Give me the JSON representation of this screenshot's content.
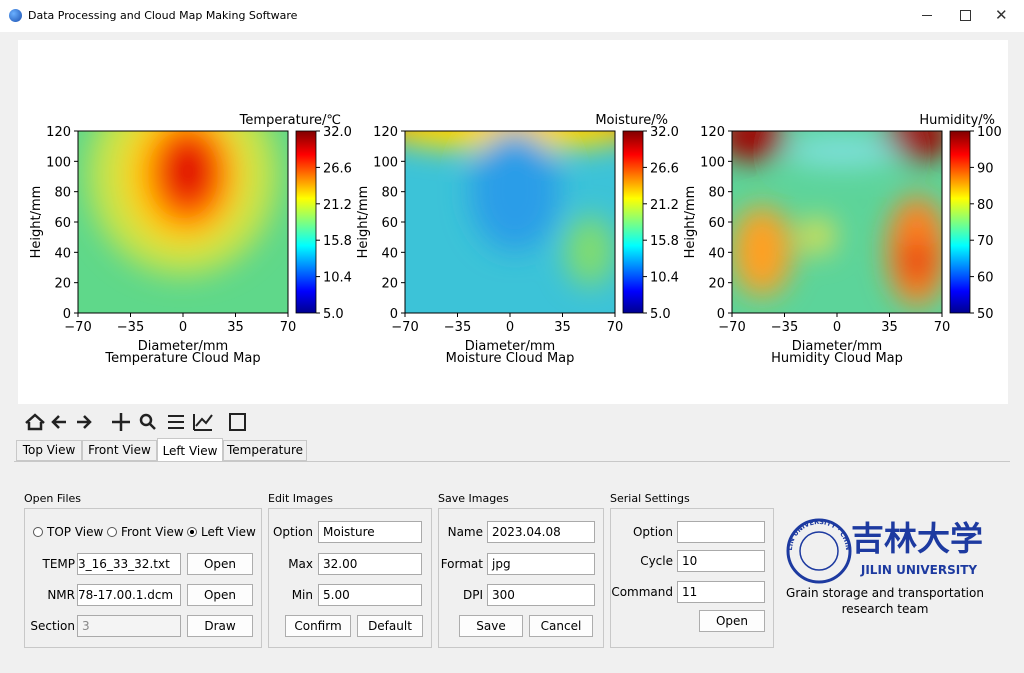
{
  "window": {
    "title": "Data Processing and Cloud Map Making Software"
  },
  "plots": [
    {
      "title": "Temperature Cloud Map",
      "colorbar_label": "Temperature/℃",
      "xlabel": "Diameter/mm",
      "ylabel": "Height/mm",
      "xlim": [
        -70,
        70
      ],
      "xticks": [
        {
          "value": -70,
          "label": "−70"
        },
        {
          "value": -35,
          "label": "−35"
        },
        0,
        35,
        70
      ],
      "ylim": [
        0,
        120
      ],
      "yticks": [
        0,
        20,
        40,
        60,
        80,
        100,
        120
      ],
      "clim": [
        5,
        32
      ],
      "cticks": [
        {
          "value": 5,
          "label": "5.0"
        },
        10.4,
        15.8,
        21.2,
        26.6,
        {
          "value": 32,
          "label": "32.0"
        }
      ]
    },
    {
      "title": "Moisture Cloud Map",
      "colorbar_label": "Moisture/%",
      "xlabel": "Diameter/mm",
      "ylabel": "Height/mm",
      "xlim": [
        -70,
        70
      ],
      "xticks": [
        {
          "value": -70,
          "label": "−70"
        },
        {
          "value": -35,
          "label": "−35"
        },
        0,
        35,
        70
      ],
      "ylim": [
        0,
        120
      ],
      "yticks": [
        0,
        20,
        40,
        60,
        80,
        100,
        120
      ],
      "clim": [
        5,
        32
      ],
      "cticks": [
        {
          "value": 5,
          "label": "5.0"
        },
        10.4,
        15.8,
        21.2,
        26.6,
        {
          "value": 32,
          "label": "32.0"
        }
      ]
    },
    {
      "title": "Humidity Cloud Map",
      "colorbar_label": "Humidity/%",
      "xlabel": "Diameter/mm",
      "ylabel": "Height/mm",
      "xlim": [
        -70,
        70
      ],
      "xticks": [
        {
          "value": -70,
          "label": "−70"
        },
        {
          "value": -35,
          "label": "−35"
        },
        0,
        35,
        70
      ],
      "ylim": [
        0,
        120
      ],
      "yticks": [
        0,
        20,
        40,
        60,
        80,
        100,
        120
      ],
      "clim": [
        50,
        100
      ],
      "cticks": [
        50,
        60,
        70,
        80,
        90,
        100
      ]
    }
  ],
  "tabs": [
    "Top View",
    "Front View",
    "Left View",
    "Temperature"
  ],
  "open_files": {
    "label": "Open Files",
    "radios": [
      "TOP View",
      "Front View",
      "Left View"
    ],
    "temp_label": "TEMP",
    "temp_value": "3_16_33_32.txt",
    "nmr_label": "NMR",
    "nmr_value": "78-17.00.1.dcm",
    "open1": "Open",
    "open2": "Open",
    "section_label": "Section",
    "section_value": "3",
    "draw": "Draw"
  },
  "edit_images": {
    "label": "Edit Images",
    "option_label": "Option",
    "option_value": "Moisture",
    "max_label": "Max",
    "max_value": "32.00",
    "min_label": "Min",
    "min_value": "5.00",
    "confirm": "Confirm",
    "default": "Default"
  },
  "save_images": {
    "label": "Save Images",
    "name_label": "Name",
    "name_value": "2023.04.08",
    "format_label": "Format",
    "format_value": "jpg",
    "dpi_label": "DPI",
    "dpi_value": "300",
    "save": "Save",
    "cancel": "Cancel"
  },
  "serial_settings": {
    "label": "Serial Settings",
    "option_label": "Option",
    "cycle_label": "Cycle",
    "cycle_value": "10",
    "command_label": "Command",
    "command_value": "11",
    "open": "Open"
  },
  "logo": {
    "seal": "JILIN UNIVERSITY · CHINA",
    "chinese": "吉林大学",
    "english": "JILIN UNIVERSITY",
    "team": "Grain storage and transportation research team"
  }
}
